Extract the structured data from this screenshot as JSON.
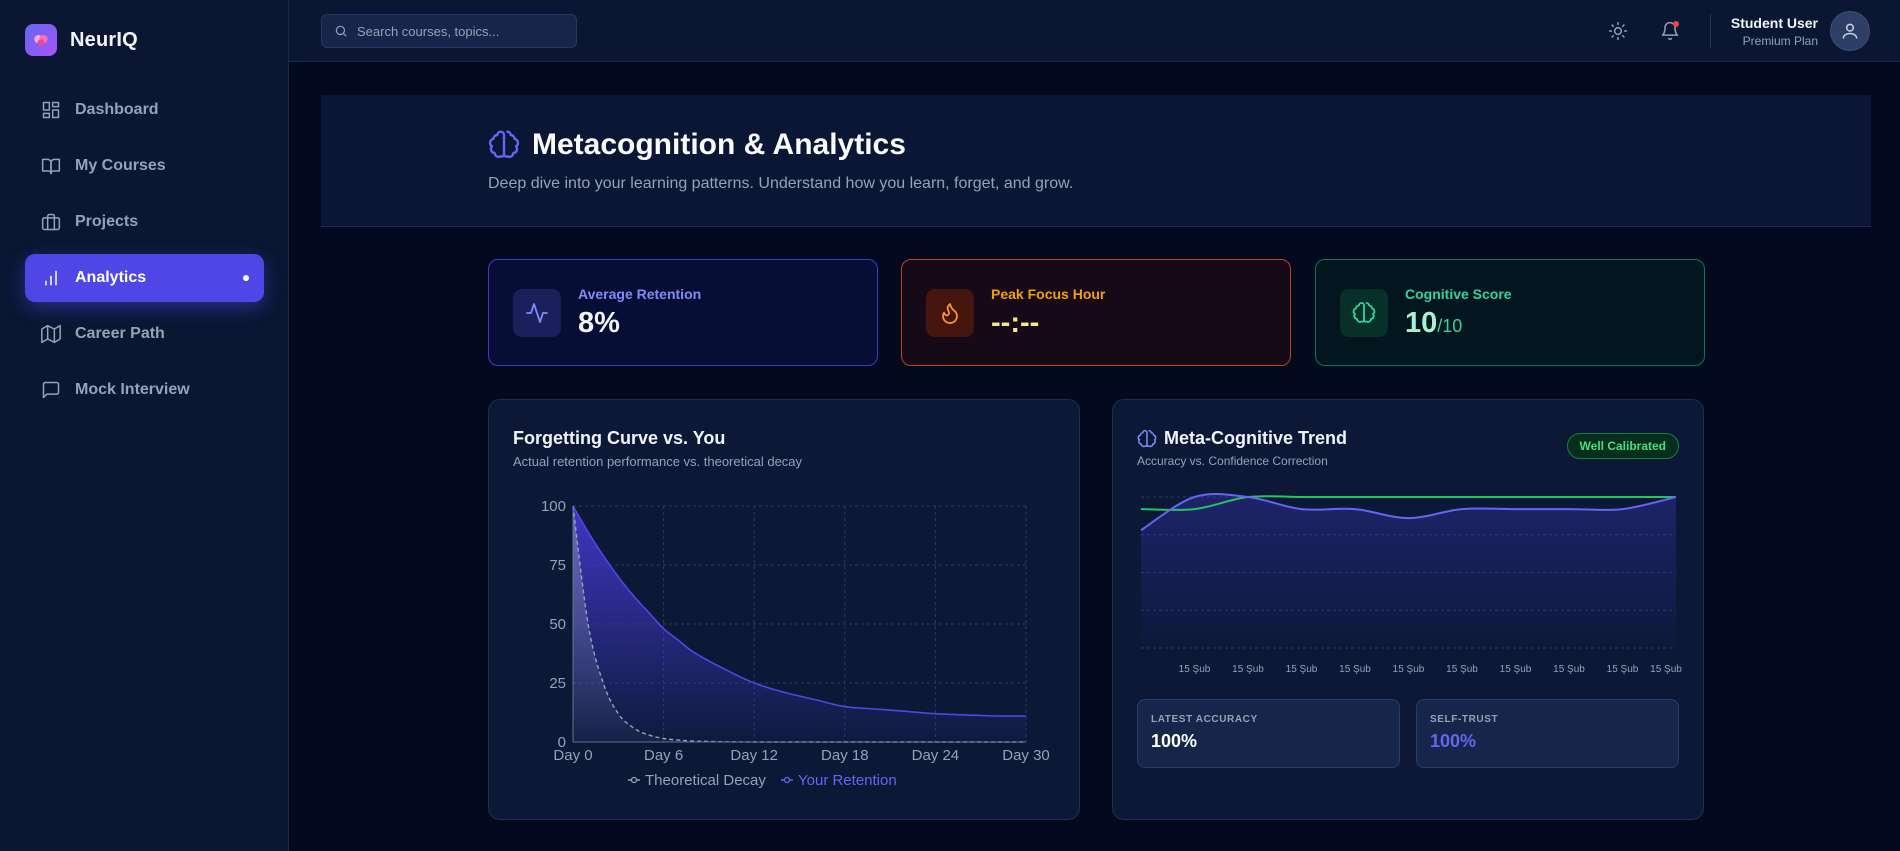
{
  "app": {
    "name": "NeurIQ"
  },
  "sidebar": {
    "items": [
      {
        "label": "Dashboard",
        "icon": "dashboard-icon",
        "active": false
      },
      {
        "label": "My Courses",
        "icon": "book-icon",
        "active": false
      },
      {
        "label": "Projects",
        "icon": "briefcase-icon",
        "active": false
      },
      {
        "label": "Analytics",
        "icon": "bar-chart-icon",
        "active": true
      },
      {
        "label": "Career Path",
        "icon": "map-icon",
        "active": false
      },
      {
        "label": "Mock Interview",
        "icon": "message-icon",
        "active": false
      }
    ]
  },
  "header": {
    "search_placeholder": "Search courses, topics...",
    "user_name": "Student User",
    "user_plan": "Premium Plan"
  },
  "page": {
    "title": "Metacognition & Analytics",
    "subtitle": "Deep dive into your learning patterns. Understand how you learn, forget, and grow."
  },
  "stats": {
    "retention": {
      "label": "Average Retention",
      "value": "8%"
    },
    "peak": {
      "label": "Peak Focus Hour",
      "value": "--:--"
    },
    "cognitive": {
      "label": "Cognitive Score",
      "value": "10",
      "suffix": "/10"
    }
  },
  "forgetting": {
    "title": "Forgetting Curve vs. You",
    "subtitle": "Actual retention performance vs. theoretical decay"
  },
  "trend": {
    "title": "Meta-Cognitive Trend",
    "subtitle": "Accuracy vs. Confidence Correction",
    "badge": "Well Calibrated",
    "latest_accuracy_label": "LATEST ACCURACY",
    "latest_accuracy_value": "100%",
    "self_trust_label": "SELF-TRUST",
    "self_trust_value": "100%"
  },
  "colors": {
    "accent": "#4f46e5",
    "retention_line": "#4f46e5",
    "decay_line": "#94a3b8",
    "accuracy_line": "#6366f1",
    "confidence_line": "#22c55e"
  },
  "chart_data": [
    {
      "type": "area",
      "x": [
        0,
        1,
        2,
        3,
        4,
        5,
        6,
        7,
        8,
        10,
        12,
        14,
        16,
        18,
        20,
        22,
        24,
        26,
        28,
        30
      ],
      "x_ticks": [
        "Day 0",
        "Day 6",
        "Day 12",
        "Day 18",
        "Day 24",
        "Day 30"
      ],
      "y_ticks": [
        "0",
        "25",
        "50",
        "75",
        "100"
      ],
      "ylim": [
        0,
        100
      ],
      "xlim": [
        0,
        30
      ],
      "grid": true,
      "legend": "bottom-center",
      "series": [
        {
          "name": "Theoretical Decay",
          "style": "dashed",
          "values": [
            100,
            50,
            25,
            12,
            6,
            3,
            1.5,
            0.8,
            0.4,
            0.1,
            0,
            0,
            0,
            0,
            0,
            0,
            0,
            0,
            0,
            0
          ]
        },
        {
          "name": "Your Retention",
          "style": "filled",
          "values": [
            100,
            89,
            79,
            70,
            62,
            55,
            48,
            43,
            38,
            31,
            25,
            21,
            18,
            15,
            14,
            13,
            12,
            11.5,
            11,
            11
          ]
        }
      ]
    },
    {
      "type": "line",
      "categories": [
        "",
        "15 Şub",
        "15 Şub",
        "15 Şub",
        "15 Şub",
        "15 Şub",
        "15 Şub",
        "15 Şub",
        "15 Şub",
        "15 Şub",
        "15 Şub"
      ],
      "ylim": [
        0,
        1
      ],
      "grid": true,
      "series": [
        {
          "values": [
            0.78,
            1.0,
            1.0,
            0.92,
            0.92,
            0.86,
            0.92,
            0.92,
            0.92,
            0.92,
            1.0
          ]
        },
        {
          "values": [
            0.92,
            0.92,
            1.0,
            1.0,
            1.0,
            1.0,
            1.0,
            1.0,
            1.0,
            1.0,
            1.0
          ]
        }
      ]
    }
  ]
}
